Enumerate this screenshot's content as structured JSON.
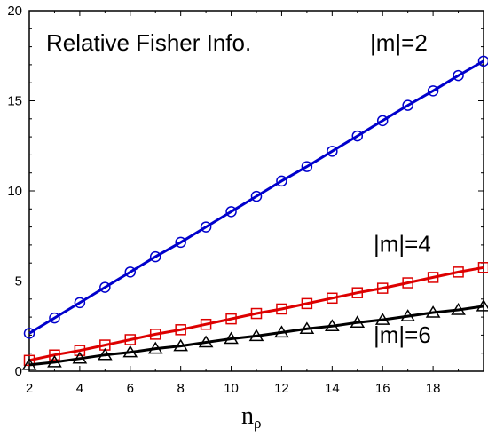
{
  "chart_data": {
    "type": "line",
    "title": "Relative Fisher Info.",
    "xlabel": "n",
    "xlabel_subscript": "ρ",
    "ylabel": "",
    "xlim": [
      2,
      20
    ],
    "ylim": [
      0,
      20
    ],
    "x_ticks": [
      2,
      4,
      6,
      8,
      10,
      12,
      14,
      16,
      18
    ],
    "y_ticks": [
      0,
      5,
      10,
      15,
      20
    ],
    "grid": false,
    "x": [
      2,
      3,
      4,
      5,
      6,
      7,
      8,
      9,
      10,
      11,
      12,
      13,
      14,
      15,
      16,
      17,
      18,
      19,
      20
    ],
    "series": [
      {
        "name": "|m|=2",
        "color": "#0000cc",
        "marker": "circle",
        "values": [
          2.1,
          2.95,
          3.8,
          4.65,
          5.5,
          6.35,
          7.15,
          8.0,
          8.85,
          9.7,
          10.55,
          11.35,
          12.2,
          13.05,
          13.9,
          14.75,
          15.55,
          16.4,
          17.2
        ]
      },
      {
        "name": "|m|=4",
        "color": "#dd0000",
        "marker": "square",
        "values": [
          0.6,
          0.9,
          1.15,
          1.45,
          1.75,
          2.05,
          2.3,
          2.6,
          2.9,
          3.2,
          3.45,
          3.75,
          4.05,
          4.35,
          4.6,
          4.9,
          5.2,
          5.5,
          5.75
        ]
      },
      {
        "name": "|m|=6",
        "color": "#000000",
        "marker": "triangle",
        "values": [
          0.35,
          0.5,
          0.7,
          0.9,
          1.05,
          1.25,
          1.4,
          1.6,
          1.8,
          1.95,
          2.15,
          2.35,
          2.5,
          2.7,
          2.85,
          3.05,
          3.25,
          3.4,
          3.6
        ]
      }
    ]
  }
}
